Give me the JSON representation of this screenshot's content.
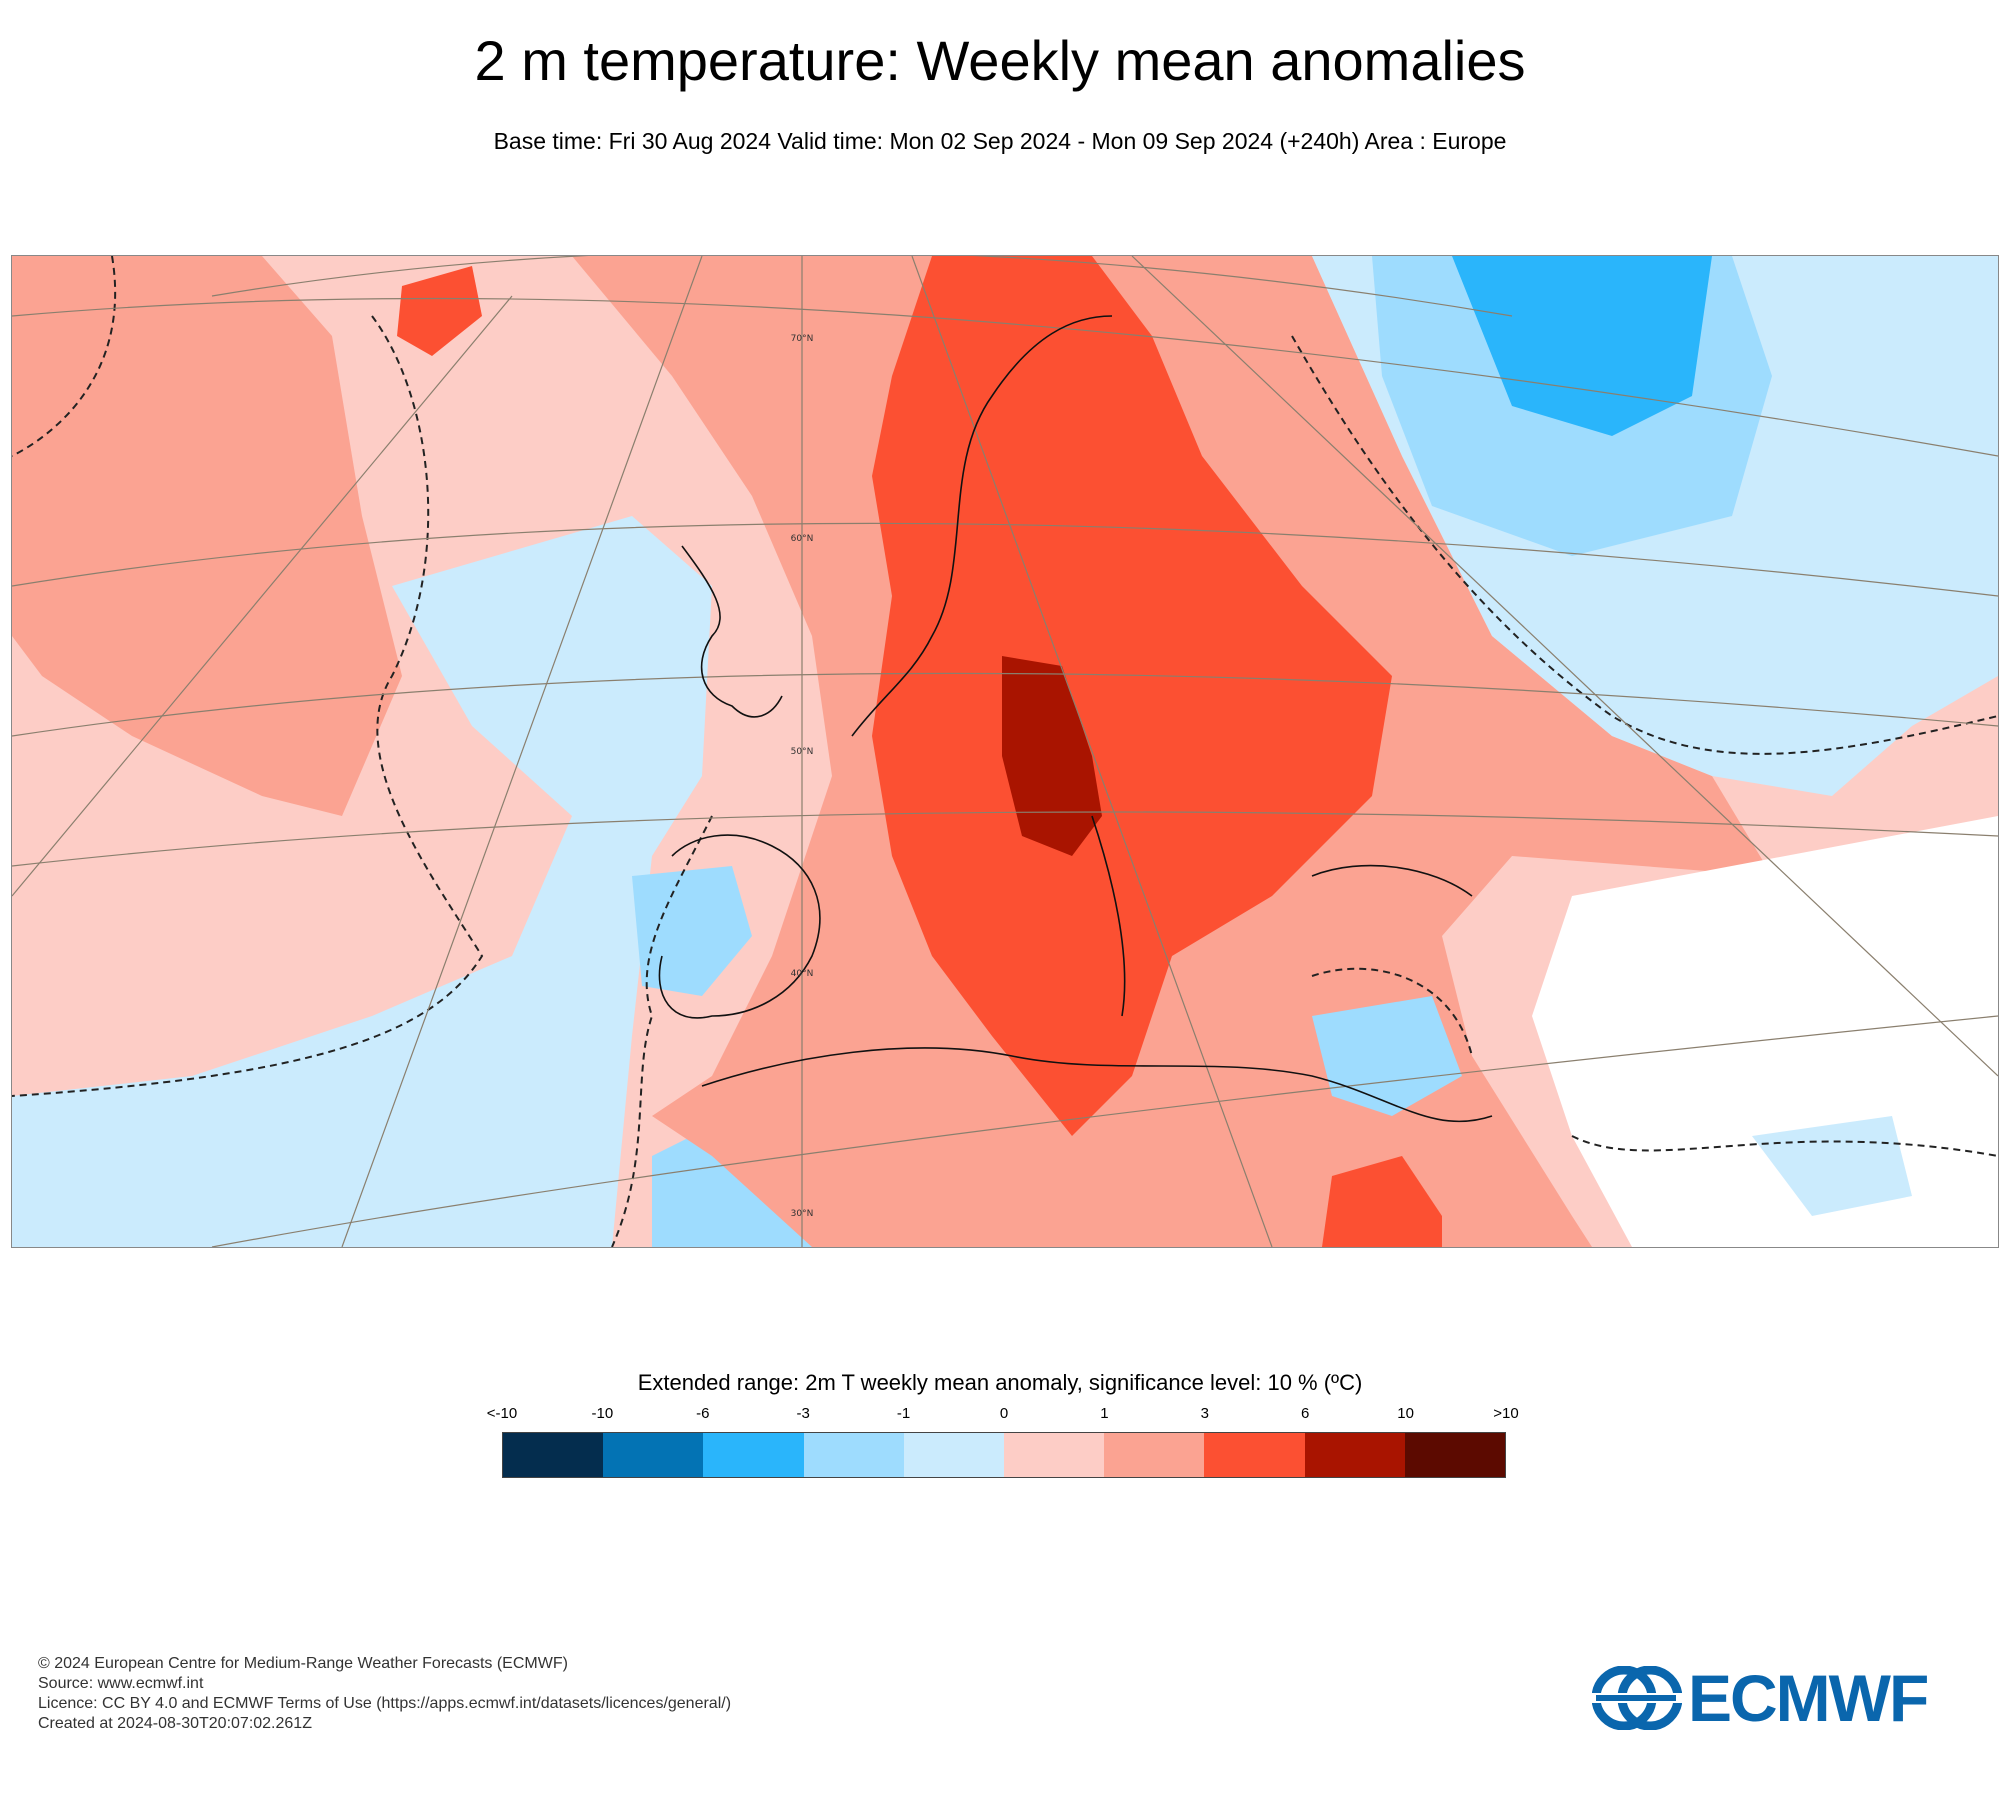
{
  "title": "2 m temperature: Weekly mean anomalies",
  "subtitle": "Base time: Fri 30 Aug 2024 Valid time: Mon 02 Sep 2024 - Mon 09 Sep 2024 (+240h) Area : Europe",
  "map": {
    "lat_labels": [
      "70°N",
      "60°N",
      "50°N",
      "40°N",
      "30°N"
    ]
  },
  "legend": {
    "title": "Extended range: 2m T weekly mean anomaly, significance level: 10 % (ºC)",
    "ticks": [
      "<-10",
      "-10",
      "-6",
      "-3",
      "-1",
      "0",
      "1",
      "3",
      "6",
      "10",
      ">10"
    ],
    "colors": [
      "#042d4e",
      "#0373b4",
      "#2ab5fb",
      "#9edcfe",
      "#cbebfd",
      "#fdcdc6",
      "#fba392",
      "#fc5032",
      "#a91400",
      "#5c0a00"
    ]
  },
  "footer": {
    "line1": "© 2024 European Centre for Medium-Range Weather Forecasts (ECMWF)",
    "line2": "Source: www.ecmwf.int",
    "line3": "Licence: CC BY 4.0 and ECMWF Terms of Use (https://apps.ecmwf.int/datasets/licences/general/)",
    "line4": "Created at 2024-08-30T20:07:02.261Z"
  },
  "logo": {
    "text": "ECMWF",
    "color": "#0a66ad"
  }
}
